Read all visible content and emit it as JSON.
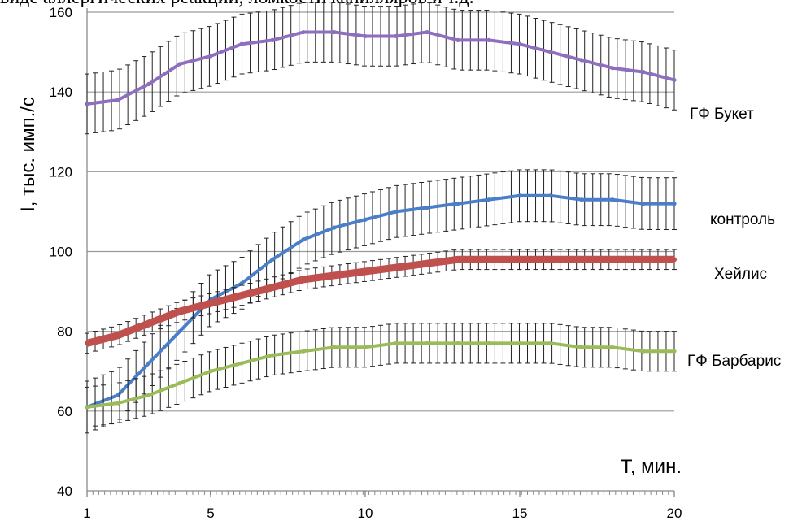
{
  "caption": "виде аллергических реакций, ломкости капилляров и т.д.",
  "chart_data": {
    "type": "line",
    "xlabel": "T, мин.",
    "ylabel": "I, тыс. имп./с",
    "xlim": [
      1,
      20
    ],
    "ylim": [
      40,
      160
    ],
    "x_ticks": [
      1,
      5,
      10,
      15,
      20
    ],
    "y_ticks": [
      40,
      60,
      80,
      100,
      120,
      140,
      160
    ],
    "grid": "horizontal",
    "legend": "labels at right end of each series",
    "error_bars": true,
    "series": [
      {
        "name": "ГФ Букет",
        "color": "#8e6fbf",
        "error": 7.5,
        "points": [
          [
            1,
            137
          ],
          [
            2,
            138
          ],
          [
            3,
            142
          ],
          [
            4,
            147
          ],
          [
            5,
            149
          ],
          [
            6,
            152
          ],
          [
            7,
            153
          ],
          [
            8,
            155
          ],
          [
            9,
            155
          ],
          [
            10,
            154
          ],
          [
            11,
            154
          ],
          [
            12,
            155
          ],
          [
            13,
            153
          ],
          [
            14,
            153
          ],
          [
            15,
            152
          ],
          [
            16,
            150
          ],
          [
            17,
            148
          ],
          [
            18,
            146
          ],
          [
            19,
            145
          ],
          [
            20,
            143
          ]
        ]
      },
      {
        "name": "контроль",
        "color": "#4a7ec9",
        "error": 6.5,
        "points": [
          [
            1,
            61
          ],
          [
            2,
            64
          ],
          [
            3,
            72
          ],
          [
            4,
            80
          ],
          [
            5,
            88
          ],
          [
            6,
            92
          ],
          [
            7,
            98
          ],
          [
            8,
            103
          ],
          [
            9,
            106
          ],
          [
            10,
            108
          ],
          [
            11,
            110
          ],
          [
            12,
            111
          ],
          [
            13,
            112
          ],
          [
            14,
            113
          ],
          [
            15,
            114
          ],
          [
            16,
            114
          ],
          [
            17,
            113
          ],
          [
            18,
            113
          ],
          [
            19,
            112
          ],
          [
            20,
            112
          ]
        ]
      },
      {
        "name": "Хейлис",
        "color": "#c0504d",
        "error": 2.5,
        "points": [
          [
            1,
            77
          ],
          [
            2,
            79
          ],
          [
            3,
            82
          ],
          [
            4,
            85
          ],
          [
            5,
            87
          ],
          [
            6,
            89
          ],
          [
            7,
            91
          ],
          [
            8,
            93
          ],
          [
            9,
            94
          ],
          [
            10,
            95
          ],
          [
            11,
            96
          ],
          [
            12,
            97
          ],
          [
            13,
            98
          ],
          [
            14,
            98
          ],
          [
            15,
            98
          ],
          [
            16,
            98
          ],
          [
            17,
            98
          ],
          [
            18,
            98
          ],
          [
            19,
            98
          ],
          [
            20,
            98
          ]
        ]
      },
      {
        "name": "ГФ Барбарис",
        "color": "#9bbb59",
        "error": 5,
        "points": [
          [
            1,
            61
          ],
          [
            2,
            62
          ],
          [
            3,
            64
          ],
          [
            4,
            67
          ],
          [
            5,
            70
          ],
          [
            6,
            72
          ],
          [
            7,
            74
          ],
          [
            8,
            75
          ],
          [
            9,
            76
          ],
          [
            10,
            76
          ],
          [
            11,
            77
          ],
          [
            12,
            77
          ],
          [
            13,
            77
          ],
          [
            14,
            77
          ],
          [
            15,
            77
          ],
          [
            16,
            77
          ],
          [
            17,
            76
          ],
          [
            18,
            76
          ],
          [
            19,
            75
          ],
          [
            20,
            75
          ]
        ]
      }
    ]
  }
}
